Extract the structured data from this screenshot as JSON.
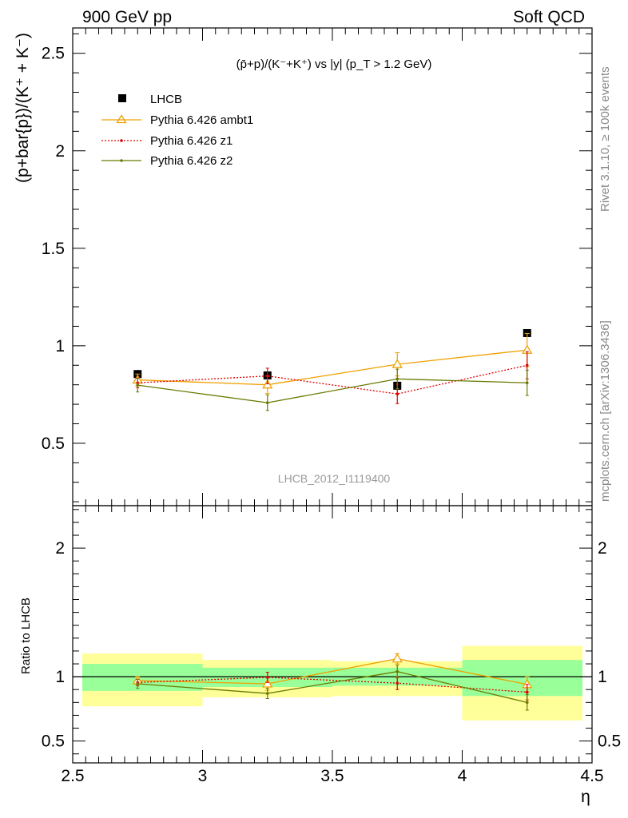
{
  "header": {
    "left": "900 GeV pp",
    "right": "Soft QCD"
  },
  "side_labels": {
    "rivet": "Rivet 3.1.10, ≥ 100k events",
    "mcplots": "mcplots.cern.ch [arXiv:1306.3436]"
  },
  "watermark": "LHCB_2012_I1119400",
  "colors": {
    "data": "#000000",
    "ambt1": "#f0a000",
    "z1": "#e00000",
    "z2": "#6b7a00",
    "band_inner": "#99ff99",
    "band_outer": "#ffff99"
  },
  "chart_data": [
    {
      "type": "scatter",
      "title": "(p̄+p)/(K⁻+K⁺) vs |y| (p_T > 1.2 GeV)",
      "xlabel": "η",
      "ylabel": "(p+bar{p})/(K⁺ + K⁻)",
      "xlim": [
        2.5,
        4.5
      ],
      "ylim": [
        0.18,
        2.63
      ],
      "yticks": [
        0.5,
        1,
        1.5,
        2,
        2.5
      ],
      "ytick_labels": [
        "0.5",
        "1",
        "1.5",
        "2",
        "2.5"
      ],
      "legend_position": "top-left",
      "x": [
        2.75,
        3.25,
        3.75,
        4.25
      ],
      "series": [
        {
          "name": "LHCB",
          "style": "data",
          "values": [
            0.855,
            0.848,
            0.795,
            1.065
          ],
          "errors": [
            0.02,
            0.02,
            0.02,
            0.02
          ]
        },
        {
          "name": "Pythia 6.426 ambt1",
          "style": "ambt1",
          "values": [
            0.825,
            0.8,
            0.905,
            0.978
          ],
          "errors": [
            0.03,
            0.045,
            0.06,
            0.085
          ]
        },
        {
          "name": "Pythia 6.426 z1",
          "style": "z1",
          "values": [
            0.81,
            0.845,
            0.753,
            0.9
          ],
          "errors": [
            0.025,
            0.04,
            0.05,
            0.07
          ]
        },
        {
          "name": "Pythia 6.426 z2",
          "style": "z2",
          "values": [
            0.798,
            0.708,
            0.83,
            0.81
          ],
          "errors": [
            0.035,
            0.04,
            0.05,
            0.065
          ]
        }
      ]
    },
    {
      "type": "scatter",
      "title": "",
      "xlabel": "η",
      "ylabel": "Ratio to LHCB",
      "xlim": [
        2.5,
        4.5
      ],
      "ylim": [
        0.33,
        2.33
      ],
      "yticks": [
        0.5,
        1,
        2
      ],
      "ytick_labels": [
        "0.5",
        "1",
        "2"
      ],
      "xticks": [
        2.5,
        3,
        3.5,
        4,
        4.5
      ],
      "xtick_labels": [
        "2.5",
        "3",
        "3.5",
        "4",
        "4.5"
      ],
      "x": [
        2.75,
        3.25,
        3.75,
        4.25
      ],
      "bands": {
        "edges": [
          2.5,
          3.0,
          3.5,
          4.0,
          4.5
        ],
        "inner": [
          [
            0.89,
            1.1
          ],
          [
            0.92,
            1.07
          ],
          [
            0.93,
            1.07
          ],
          [
            0.85,
            1.13
          ]
        ],
        "outer": [
          [
            0.77,
            1.18
          ],
          [
            0.84,
            1.13
          ],
          [
            0.85,
            1.12
          ],
          [
            0.66,
            1.24
          ]
        ]
      },
      "series": [
        {
          "name": "Pythia 6.426 ambt1",
          "style": "ambt1",
          "values": [
            0.97,
            0.945,
            1.14,
            0.94
          ],
          "errors": [
            0.03,
            0.05,
            0.04,
            0.06
          ]
        },
        {
          "name": "Pythia 6.426 z1",
          "style": "z1",
          "values": [
            0.955,
            0.995,
            0.95,
            0.88
          ],
          "errors": [
            0.025,
            0.04,
            0.05,
            0.06
          ]
        },
        {
          "name": "Pythia 6.426 z2",
          "style": "z2",
          "values": [
            0.945,
            0.87,
            1.04,
            0.8
          ],
          "errors": [
            0.035,
            0.04,
            0.05,
            0.06
          ]
        }
      ]
    }
  ]
}
